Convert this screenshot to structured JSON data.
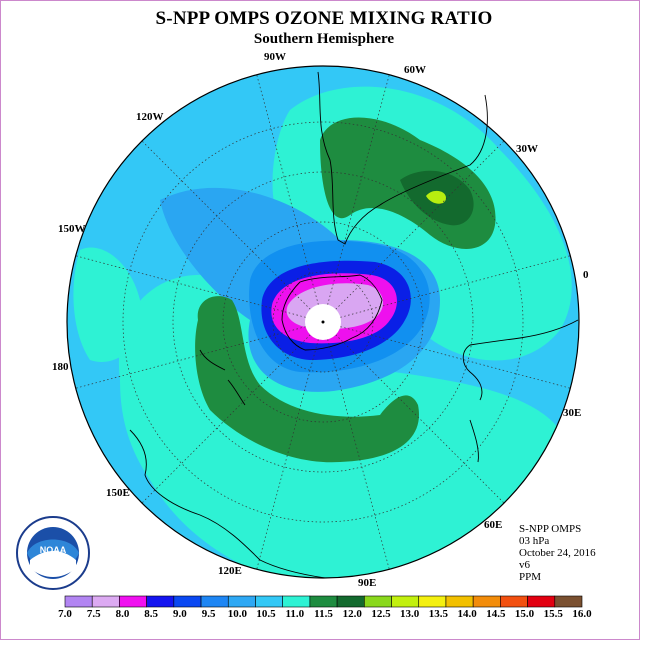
{
  "header": {
    "title": "S-NPP OMPS OZONE MIXING RATIO",
    "subtitle": "Southern Hemisphere"
  },
  "map": {
    "longitude_labels": [
      "90W",
      "60W",
      "30W",
      "0",
      "30E",
      "60E",
      "90E",
      "120E",
      "150E",
      "180",
      "150W",
      "120W"
    ],
    "colors": {
      "ocean_outer": "#33c8f6",
      "band_aqua": "#2ef2d4",
      "band_green": "#1e8c40",
      "band_darkgreen": "#136a2e",
      "band_lime": "#b8ee10",
      "band_blue": "#1190f0",
      "band_blue2": "#2aa6f2",
      "band_darkblue": "#0a1fe6",
      "band_magenta": "#ee10ee",
      "band_lilac": "#d9a6f2"
    }
  },
  "info": {
    "line1": "S-NPP OMPS",
    "line2": "03 hPa",
    "line3": "October 24, 2016",
    "line4": "v6",
    "line5": "PPM"
  },
  "logo": {
    "text": "NOAA"
  },
  "colorbar": {
    "labels": [
      "7.0",
      "7.5",
      "8.0",
      "8.5",
      "9.0",
      "9.5",
      "10.0",
      "10.5",
      "11.0",
      "11.5",
      "12.0",
      "12.5",
      "13.0",
      "13.5",
      "14.0",
      "14.5",
      "15.0",
      "15.5",
      "16.0"
    ],
    "colors": [
      "#b285f2",
      "#dcaaf2",
      "#f010f0",
      "#1414f0",
      "#0a48f2",
      "#1e86f4",
      "#2ea8f4",
      "#33c8f6",
      "#2ef2d4",
      "#1e8c40",
      "#136a2e",
      "#8ad81c",
      "#c2f00e",
      "#f4f010",
      "#f2c000",
      "#f28c0a",
      "#f25010",
      "#e20010"
    ],
    "last_color": "#7a5030"
  }
}
